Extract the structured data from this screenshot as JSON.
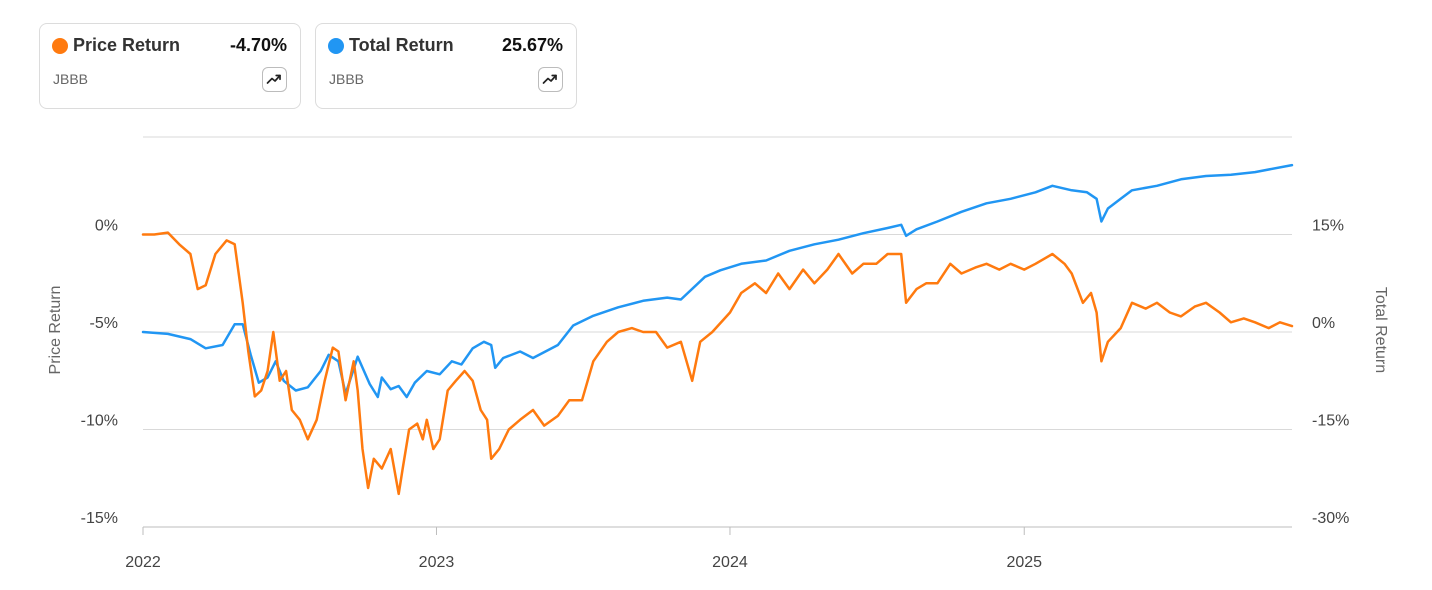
{
  "cards": [
    {
      "name": "Price Return",
      "value": "-4.70%",
      "ticker": "JBBB",
      "color": "#ff7a0f",
      "icon": "trending-up-icon"
    },
    {
      "name": "Total Return",
      "value": "25.67%",
      "ticker": "JBBB",
      "color": "#2196f3",
      "icon": "trending-up-icon"
    }
  ],
  "chart_data": {
    "type": "line",
    "x_axis": {
      "ticks": [
        "2022",
        "2023",
        "2024",
        "2025"
      ],
      "range": [
        "2022-01-01",
        "2025-11-30"
      ]
    },
    "y_left": {
      "label": "Price Return",
      "ticks": [
        0,
        -5,
        -10,
        -15
      ],
      "tick_labels": [
        "0%",
        "-5%",
        "-10%",
        "-15%"
      ],
      "range": [
        -15,
        5
      ]
    },
    "y_right": {
      "label": "Total Return",
      "ticks": [
        15,
        0,
        -15,
        -30
      ],
      "tick_labels": [
        "15%",
        "0%",
        "-15%",
        "-30%"
      ],
      "range": [
        -30,
        30
      ]
    },
    "grid": true,
    "series": [
      {
        "name": "Total Return",
        "axis": "right",
        "color": "#2196f3",
        "points": [
          [
            "2022-01-01",
            0.0
          ],
          [
            "2022-02-01",
            -0.3
          ],
          [
            "2022-03-01",
            -1.1
          ],
          [
            "2022-03-20",
            -2.5
          ],
          [
            "2022-04-10",
            -2.0
          ],
          [
            "2022-04-25",
            1.2
          ],
          [
            "2022-05-05",
            1.2
          ],
          [
            "2022-05-15",
            -3.5
          ],
          [
            "2022-05-25",
            -7.8
          ],
          [
            "2022-06-05",
            -7.0
          ],
          [
            "2022-06-15",
            -4.5
          ],
          [
            "2022-06-25",
            -7.5
          ],
          [
            "2022-07-10",
            -9.0
          ],
          [
            "2022-07-25",
            -8.5
          ],
          [
            "2022-08-10",
            -6.0
          ],
          [
            "2022-08-20",
            -3.5
          ],
          [
            "2022-09-01",
            -4.5
          ],
          [
            "2022-09-10",
            -9.5
          ],
          [
            "2022-09-25",
            -3.8
          ],
          [
            "2022-10-10",
            -8.0
          ],
          [
            "2022-10-20",
            -10.0
          ],
          [
            "2022-10-25",
            -7.0
          ],
          [
            "2022-11-05",
            -8.8
          ],
          [
            "2022-11-15",
            -8.3
          ],
          [
            "2022-11-25",
            -10.0
          ],
          [
            "2022-12-05",
            -7.8
          ],
          [
            "2022-12-20",
            -6.0
          ],
          [
            "2023-01-05",
            -6.5
          ],
          [
            "2023-01-20",
            -4.5
          ],
          [
            "2023-02-01",
            -5.0
          ],
          [
            "2023-02-15",
            -2.5
          ],
          [
            "2023-03-01",
            -1.5
          ],
          [
            "2023-03-10",
            -2.0
          ],
          [
            "2023-03-15",
            -5.5
          ],
          [
            "2023-03-25",
            -4.0
          ],
          [
            "2023-04-15",
            -3.0
          ],
          [
            "2023-05-01",
            -4.0
          ],
          [
            "2023-06-01",
            -2.0
          ],
          [
            "2023-06-20",
            1.0
          ],
          [
            "2023-07-15",
            2.5
          ],
          [
            "2023-08-15",
            3.8
          ],
          [
            "2023-09-15",
            4.8
          ],
          [
            "2023-10-15",
            5.3
          ],
          [
            "2023-11-01",
            5.0
          ],
          [
            "2023-12-01",
            8.5
          ],
          [
            "2023-12-20",
            9.5
          ],
          [
            "2024-01-15",
            10.5
          ],
          [
            "2024-02-15",
            11.0
          ],
          [
            "2024-03-15",
            12.5
          ],
          [
            "2024-04-15",
            13.5
          ],
          [
            "2024-05-15",
            14.2
          ],
          [
            "2024-06-15",
            15.2
          ],
          [
            "2024-07-15",
            16.0
          ],
          [
            "2024-08-01",
            16.5
          ],
          [
            "2024-08-07",
            14.8
          ],
          [
            "2024-08-20",
            15.8
          ],
          [
            "2024-09-15",
            17.0
          ],
          [
            "2024-10-15",
            18.5
          ],
          [
            "2024-11-15",
            19.8
          ],
          [
            "2024-12-15",
            20.5
          ],
          [
            "2025-01-15",
            21.5
          ],
          [
            "2025-02-05",
            22.5
          ],
          [
            "2025-03-01",
            21.8
          ],
          [
            "2025-03-20",
            21.5
          ],
          [
            "2025-04-01",
            20.5
          ],
          [
            "2025-04-07",
            17.0
          ],
          [
            "2025-04-15",
            19.0
          ],
          [
            "2025-05-01",
            20.5
          ],
          [
            "2025-05-15",
            21.8
          ],
          [
            "2025-06-15",
            22.5
          ],
          [
            "2025-07-15",
            23.5
          ],
          [
            "2025-08-15",
            24.0
          ],
          [
            "2025-09-15",
            24.2
          ],
          [
            "2025-10-15",
            24.6
          ],
          [
            "2025-11-30",
            25.67
          ]
        ]
      },
      {
        "name": "Price Return",
        "axis": "left",
        "color": "#ff7a0f",
        "points": [
          [
            "2022-01-01",
            0.0
          ],
          [
            "2022-01-15",
            0.0
          ],
          [
            "2022-02-01",
            0.1
          ],
          [
            "2022-02-15",
            -0.5
          ],
          [
            "2022-03-01",
            -1.0
          ],
          [
            "2022-03-10",
            -2.8
          ],
          [
            "2022-03-20",
            -2.6
          ],
          [
            "2022-04-01",
            -1.0
          ],
          [
            "2022-04-15",
            -0.3
          ],
          [
            "2022-04-25",
            -0.5
          ],
          [
            "2022-05-05",
            -3.5
          ],
          [
            "2022-05-12",
            -6.0
          ],
          [
            "2022-05-20",
            -8.3
          ],
          [
            "2022-05-28",
            -8.0
          ],
          [
            "2022-06-05",
            -7.0
          ],
          [
            "2022-06-12",
            -5.0
          ],
          [
            "2022-06-20",
            -7.5
          ],
          [
            "2022-06-28",
            -7.0
          ],
          [
            "2022-07-05",
            -9.0
          ],
          [
            "2022-07-15",
            -9.5
          ],
          [
            "2022-07-25",
            -10.5
          ],
          [
            "2022-08-05",
            -9.5
          ],
          [
            "2022-08-15",
            -7.5
          ],
          [
            "2022-08-25",
            -5.8
          ],
          [
            "2022-09-01",
            -6.0
          ],
          [
            "2022-09-10",
            -8.5
          ],
          [
            "2022-09-20",
            -6.5
          ],
          [
            "2022-09-25",
            -8.0
          ],
          [
            "2022-10-01",
            -11.0
          ],
          [
            "2022-10-08",
            -13.0
          ],
          [
            "2022-10-15",
            -11.5
          ],
          [
            "2022-10-25",
            -12.0
          ],
          [
            "2022-11-05",
            -11.0
          ],
          [
            "2022-11-15",
            -13.3
          ],
          [
            "2022-11-20",
            -12.0
          ],
          [
            "2022-11-28",
            -10.0
          ],
          [
            "2022-12-08",
            -9.7
          ],
          [
            "2022-12-15",
            -10.5
          ],
          [
            "2022-12-20",
            -9.5
          ],
          [
            "2022-12-28",
            -11.0
          ],
          [
            "2023-01-05",
            -10.5
          ],
          [
            "2023-01-15",
            -8.0
          ],
          [
            "2023-01-25",
            -7.5
          ],
          [
            "2023-02-05",
            -7.0
          ],
          [
            "2023-02-15",
            -7.5
          ],
          [
            "2023-02-25",
            -9.0
          ],
          [
            "2023-03-05",
            -9.5
          ],
          [
            "2023-03-10",
            -11.5
          ],
          [
            "2023-03-20",
            -11.0
          ],
          [
            "2023-04-01",
            -10.0
          ],
          [
            "2023-04-15",
            -9.5
          ],
          [
            "2023-05-01",
            -9.0
          ],
          [
            "2023-05-15",
            -9.8
          ],
          [
            "2023-06-01",
            -9.3
          ],
          [
            "2023-06-15",
            -8.5
          ],
          [
            "2023-07-01",
            -8.5
          ],
          [
            "2023-07-15",
            -6.5
          ],
          [
            "2023-08-01",
            -5.5
          ],
          [
            "2023-08-15",
            -5.0
          ],
          [
            "2023-09-01",
            -4.8
          ],
          [
            "2023-09-15",
            -5.0
          ],
          [
            "2023-10-01",
            -5.0
          ],
          [
            "2023-10-15",
            -5.8
          ],
          [
            "2023-11-01",
            -5.5
          ],
          [
            "2023-11-15",
            -7.5
          ],
          [
            "2023-11-25",
            -5.5
          ],
          [
            "2023-12-10",
            -5.0
          ],
          [
            "2024-01-01",
            -4.0
          ],
          [
            "2024-01-15",
            -3.0
          ],
          [
            "2024-02-01",
            -2.5
          ],
          [
            "2024-02-15",
            -3.0
          ],
          [
            "2024-03-01",
            -2.0
          ],
          [
            "2024-03-15",
            -2.8
          ],
          [
            "2024-04-01",
            -1.8
          ],
          [
            "2024-04-15",
            -2.5
          ],
          [
            "2024-05-01",
            -1.8
          ],
          [
            "2024-05-15",
            -1.0
          ],
          [
            "2024-06-01",
            -2.0
          ],
          [
            "2024-06-15",
            -1.5
          ],
          [
            "2024-07-01",
            -1.5
          ],
          [
            "2024-07-15",
            -1.0
          ],
          [
            "2024-08-01",
            -1.0
          ],
          [
            "2024-08-07",
            -3.5
          ],
          [
            "2024-08-20",
            -2.8
          ],
          [
            "2024-09-01",
            -2.5
          ],
          [
            "2024-09-15",
            -2.5
          ],
          [
            "2024-10-01",
            -1.5
          ],
          [
            "2024-10-15",
            -2.0
          ],
          [
            "2024-11-01",
            -1.7
          ],
          [
            "2024-11-15",
            -1.5
          ],
          [
            "2024-12-01",
            -1.8
          ],
          [
            "2024-12-15",
            -1.5
          ],
          [
            "2025-01-01",
            -1.8
          ],
          [
            "2025-01-15",
            -1.5
          ],
          [
            "2025-02-05",
            -1.0
          ],
          [
            "2025-02-20",
            -1.5
          ],
          [
            "2025-03-01",
            -2.0
          ],
          [
            "2025-03-15",
            -3.5
          ],
          [
            "2025-03-25",
            -3.0
          ],
          [
            "2025-04-01",
            -4.0
          ],
          [
            "2025-04-07",
            -6.5
          ],
          [
            "2025-04-15",
            -5.5
          ],
          [
            "2025-05-01",
            -4.8
          ],
          [
            "2025-05-15",
            -3.5
          ],
          [
            "2025-06-01",
            -3.8
          ],
          [
            "2025-06-15",
            -3.5
          ],
          [
            "2025-07-01",
            -4.0
          ],
          [
            "2025-07-15",
            -4.2
          ],
          [
            "2025-08-01",
            -3.7
          ],
          [
            "2025-08-15",
            -3.5
          ],
          [
            "2025-09-01",
            -4.0
          ],
          [
            "2025-09-15",
            -4.5
          ],
          [
            "2025-10-01",
            -4.3
          ],
          [
            "2025-10-15",
            -4.5
          ],
          [
            "2025-11-01",
            -4.8
          ],
          [
            "2025-11-15",
            -4.5
          ],
          [
            "2025-11-30",
            -4.7
          ]
        ]
      }
    ]
  }
}
